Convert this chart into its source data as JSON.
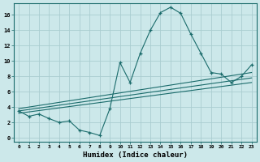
{
  "xlabel": "Humidex (Indice chaleur)",
  "bg_color": "#cce8ea",
  "grid_color": "#aacdd0",
  "line_color": "#1a6b6b",
  "x_ticks": [
    0,
    1,
    2,
    3,
    4,
    5,
    6,
    7,
    8,
    9,
    10,
    11,
    12,
    13,
    14,
    15,
    16,
    17,
    18,
    19,
    20,
    21,
    22,
    23
  ],
  "y_ticks": [
    0,
    2,
    4,
    6,
    8,
    10,
    12,
    14,
    16
  ],
  "xlim": [
    -0.5,
    23.5
  ],
  "ylim": [
    -0.5,
    17.5
  ],
  "main_series": {
    "x": [
      0,
      1,
      2,
      3,
      4,
      5,
      6,
      7,
      8,
      9,
      10,
      11,
      12,
      13,
      14,
      15,
      16,
      17,
      18,
      19,
      20,
      21,
      22,
      23
    ],
    "y": [
      3.5,
      2.8,
      3.1,
      2.5,
      2.0,
      2.2,
      1.0,
      0.7,
      0.3,
      3.8,
      9.8,
      7.2,
      11.0,
      14.0,
      16.3,
      17.0,
      16.2,
      13.5,
      11.0,
      8.5,
      8.3,
      7.2,
      8.0,
      9.5
    ]
  },
  "linear_series": [
    {
      "x": [
        0,
        23
      ],
      "y": [
        3.2,
        7.2
      ]
    },
    {
      "x": [
        0,
        23
      ],
      "y": [
        3.5,
        7.8
      ]
    },
    {
      "x": [
        0,
        23
      ],
      "y": [
        3.8,
        8.5
      ]
    }
  ]
}
